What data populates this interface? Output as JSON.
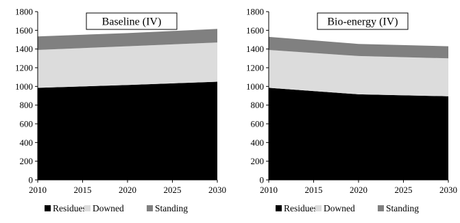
{
  "chart_data": [
    {
      "type": "area",
      "stacked": true,
      "title": "Baseline (IV)",
      "x": [
        2010,
        2020,
        2030
      ],
      "xlim": [
        2010,
        2030
      ],
      "xticks": [
        2010,
        2015,
        2020,
        2025,
        2030
      ],
      "ylim": [
        0,
        1800
      ],
      "yticks": [
        0,
        200,
        400,
        600,
        800,
        1000,
        1200,
        1400,
        1600,
        1800
      ],
      "grid": false,
      "series": [
        {
          "name": "Residues",
          "values": [
            985,
            1015,
            1050
          ],
          "color": "#000000"
        },
        {
          "name": "Downed",
          "values": [
            405,
            415,
            420
          ],
          "color": "#dcdcdc"
        },
        {
          "name": "Standing",
          "values": [
            145,
            140,
            145
          ],
          "color": "#808080"
        }
      ]
    },
    {
      "type": "area",
      "stacked": true,
      "title": "Bio-energy (IV)",
      "x": [
        2010,
        2020,
        2030
      ],
      "xlim": [
        2010,
        2030
      ],
      "xticks": [
        2010,
        2015,
        2020,
        2025,
        2030
      ],
      "ylim": [
        0,
        1800
      ],
      "yticks": [
        0,
        200,
        400,
        600,
        800,
        1000,
        1200,
        1400,
        1600,
        1800
      ],
      "grid": false,
      "series": [
        {
          "name": "Residues",
          "values": [
            985,
            915,
            895
          ],
          "color": "#000000"
        },
        {
          "name": "Downed",
          "values": [
            405,
            410,
            405
          ],
          "color": "#dcdcdc"
        },
        {
          "name": "Standing",
          "values": [
            140,
            130,
            130
          ],
          "color": "#808080"
        }
      ]
    }
  ],
  "legend": [
    {
      "label": "Residues",
      "color": "#000000"
    },
    {
      "label": "Downed",
      "color": "#dcdcdc"
    },
    {
      "label": "Standing",
      "color": "#808080"
    }
  ]
}
